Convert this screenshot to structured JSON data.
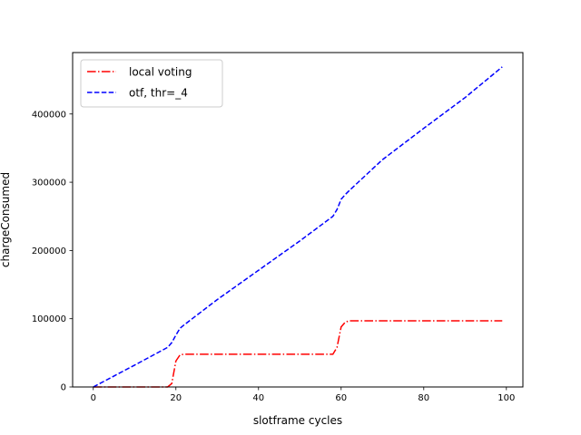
{
  "chart_data": {
    "type": "line",
    "title": "",
    "xlabel": "slotframe cycles",
    "ylabel": "chargeConsumed",
    "xlim": [
      -5,
      104
    ],
    "ylim": [
      0,
      490000
    ],
    "xticks": [
      0,
      20,
      40,
      60,
      80,
      100
    ],
    "yticks": [
      0,
      100000,
      200000,
      300000,
      400000
    ],
    "grid": false,
    "legend": {
      "placement": "top-left"
    },
    "series": [
      {
        "name": "local voting",
        "color": "#ff0000",
        "linestyle": "dashdot",
        "x": [
          0,
          5,
          10,
          15,
          18,
          19,
          20,
          21,
          22,
          30,
          40,
          50,
          58,
          59,
          60,
          61,
          62,
          70,
          80,
          90,
          99
        ],
        "y": [
          0,
          0,
          0,
          0,
          0,
          5000,
          38000,
          47000,
          48000,
          48000,
          48000,
          48000,
          48000,
          58000,
          88000,
          95000,
          97000,
          97000,
          97000,
          97000,
          97000
        ]
      },
      {
        "name": "otf, thr=_4",
        "color": "#0000ff",
        "linestyle": "dashed",
        "x": [
          0,
          10,
          18,
          19,
          20,
          21,
          22,
          30,
          40,
          50,
          58,
          59,
          60,
          61,
          62,
          70,
          80,
          90,
          99
        ],
        "y": [
          0,
          32000,
          58000,
          65000,
          76000,
          86000,
          91000,
          128000,
          171000,
          214000,
          250000,
          260000,
          275000,
          282000,
          288000,
          333000,
          379000,
          424000,
          469000
        ]
      }
    ]
  }
}
